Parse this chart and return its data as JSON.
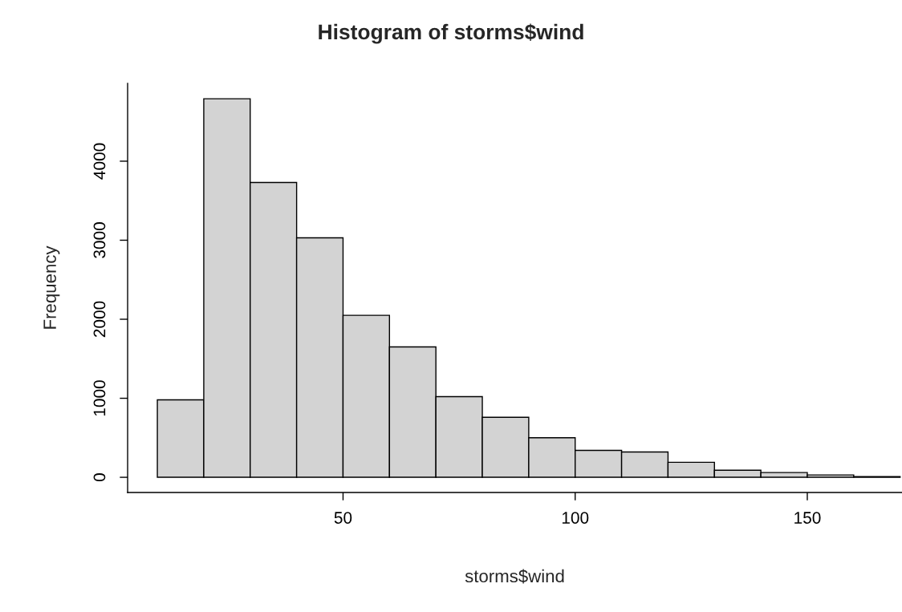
{
  "chart_data": {
    "type": "histogram",
    "title": "Histogram of storms$wind",
    "xlabel": "storms$wind",
    "ylabel": "Frequency",
    "bins": [
      10,
      20,
      30,
      40,
      50,
      60,
      70,
      80,
      90,
      100,
      110,
      120,
      130,
      140,
      150,
      160,
      170
    ],
    "values": [
      980,
      4790,
      3730,
      3030,
      2050,
      1650,
      1020,
      760,
      500,
      340,
      320,
      190,
      90,
      60,
      30,
      10
    ],
    "color": "#d3d3d3",
    "xlim": [
      3.6,
      170.4
    ],
    "ylim": [
      -192,
      4984
    ],
    "xticks": [
      50,
      100,
      150
    ],
    "yticks": [
      0,
      1000,
      2000,
      3000,
      4000
    ],
    "grid": false
  }
}
